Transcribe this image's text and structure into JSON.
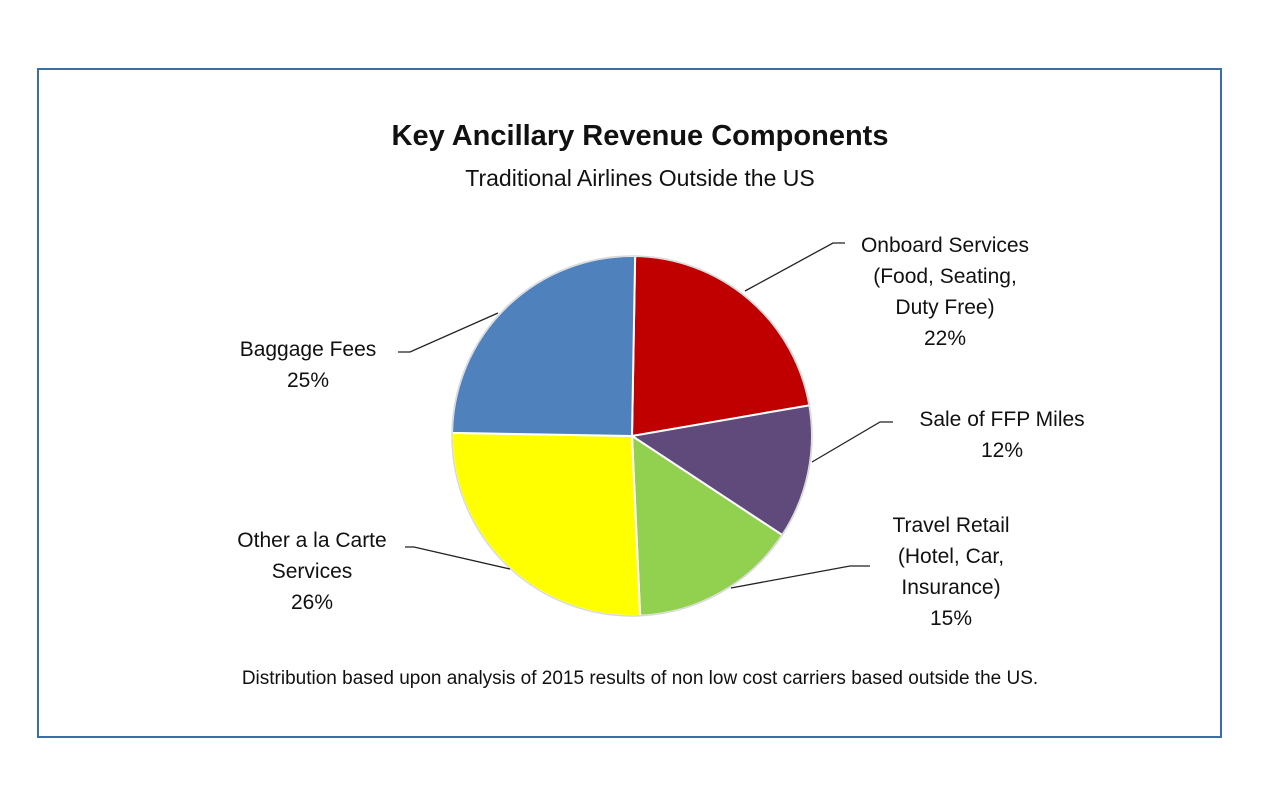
{
  "chart_data": {
    "type": "pie",
    "title": "Key Ancillary Revenue Components",
    "subtitle": "Traditional Airlines Outside the US",
    "footnote": "Distribution based upon analysis of 2015 results of non low cost carriers based outside the US.",
    "start_angle_deg": 1,
    "slices": [
      {
        "label_lines": [
          "Onboard Services",
          "(Food, Seating,",
          "Duty Free)"
        ],
        "percent_label": "22%",
        "value": 22,
        "color": "#c00000"
      },
      {
        "label_lines": [
          "Sale of FFP Miles"
        ],
        "percent_label": "12%",
        "value": 12,
        "color": "#604a7b"
      },
      {
        "label_lines": [
          "Travel Retail",
          "(Hotel, Car,",
          "Insurance)"
        ],
        "percent_label": "15%",
        "value": 15,
        "color": "#92d050"
      },
      {
        "label_lines": [
          "Other a la Carte",
          "Services"
        ],
        "percent_label": "26%",
        "value": 26,
        "color": "#ffff00"
      },
      {
        "label_lines": [
          "Baggage Fees"
        ],
        "percent_label": "25%",
        "value": 25,
        "color": "#4f81bd"
      }
    ]
  }
}
